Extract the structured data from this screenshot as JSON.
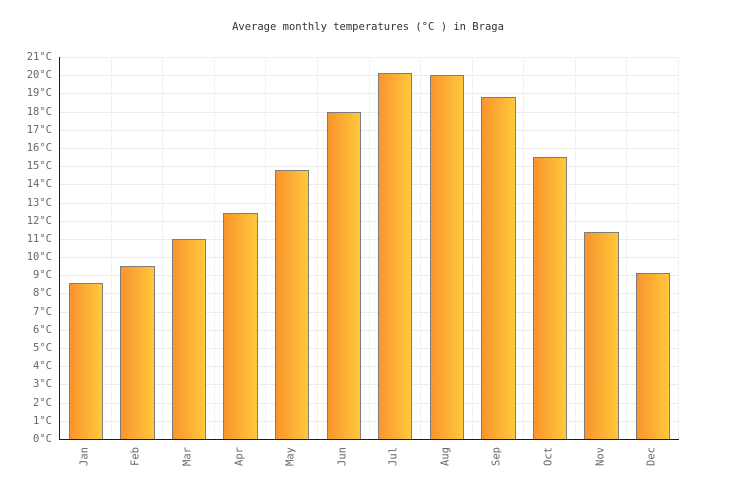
{
  "chart_data": {
    "type": "bar",
    "title": "Average monthly temperatures (°C ) in Braga",
    "categories": [
      "Jan",
      "Feb",
      "Mar",
      "Apr",
      "May",
      "Jun",
      "Jul",
      "Aug",
      "Sep",
      "Oct",
      "Nov",
      "Dec"
    ],
    "values": [
      8.6,
      9.5,
      11,
      12.4,
      14.8,
      18,
      20.1,
      20,
      18.8,
      15.5,
      11.4,
      9.1
    ],
    "xlabel": "",
    "ylabel": "",
    "ylim": [
      0,
      21
    ],
    "ytick_step": 1,
    "ytick_labels": [
      "0°C",
      "1°C",
      "2°C",
      "3°C",
      "4°C",
      "5°C",
      "6°C",
      "7°C",
      "8°C",
      "9°C",
      "10°C",
      "11°C",
      "12°C",
      "13°C",
      "14°C",
      "15°C",
      "16°C",
      "17°C",
      "18°C",
      "19°C",
      "20°C",
      "21°C"
    ],
    "grid": true,
    "legend": "none",
    "colors": {
      "bar_gradient_left": "#F9942D",
      "bar_gradient_right": "#FFC83D",
      "bar_border": "#7D7D7D",
      "axis": "#1C1C1C",
      "grid_horizontal": "#ECECEC",
      "grid_vertical": "#F1F1F1",
      "label": "#686868",
      "title": "#333333",
      "background": "#FFFFFF"
    }
  }
}
